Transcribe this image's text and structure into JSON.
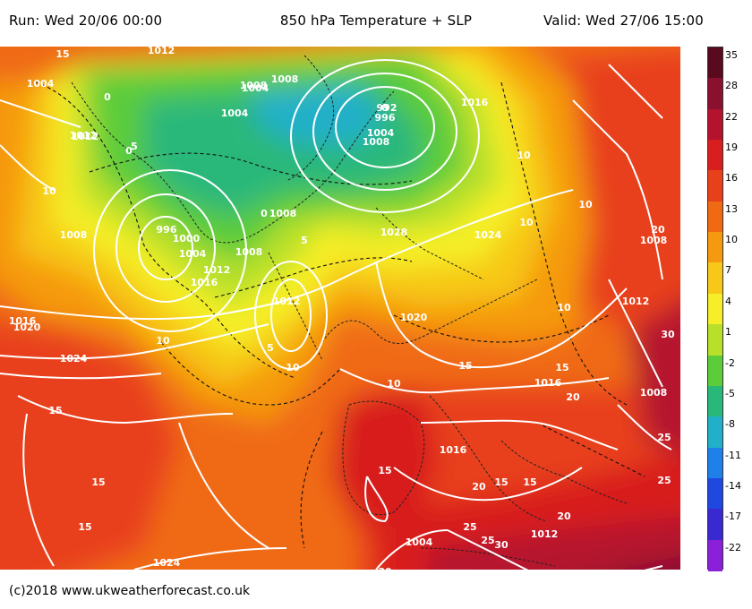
{
  "header": {
    "run": "Run: Wed 20/06 00:00",
    "title": "850 hPa Temperature + SLP",
    "valid": "Valid: Wed 27/06 15:00"
  },
  "footer": {
    "copyright": "(c)2018 www.ukweatherforecast.co.uk"
  },
  "scale": {
    "ticks": [
      "35",
      "28",
      "22",
      "19",
      "16",
      "13",
      "10",
      "7",
      "4",
      "1",
      "-2",
      "-5",
      "-8",
      "-11",
      "-14",
      "-17",
      "-22"
    ],
    "colors": [
      "#5a0a1e",
      "#8a1030",
      "#b5122e",
      "#d81e1e",
      "#e8401a",
      "#f06a14",
      "#f59a10",
      "#f7c818",
      "#f5ee28",
      "#b8e02a",
      "#5ccc3a",
      "#2ab87a",
      "#22b0c8",
      "#1e80e8",
      "#1e48e0",
      "#3a28d0",
      "#8a20d8"
    ]
  },
  "map": {
    "isobar_labels": [
      "1012",
      "1004",
      "1008",
      "1012",
      "1004",
      "1004",
      "1008",
      "992",
      "996",
      "1004",
      "1008",
      "1016",
      "1012",
      "996",
      "1000",
      "1004",
      "1008",
      "1008",
      "1012",
      "1016",
      "1008",
      "1028",
      "1024",
      "1012",
      "1016",
      "1020",
      "1024",
      "1024",
      "1020",
      "1016",
      "1012",
      "1008",
      "1004",
      "1016",
      "1012",
      "1008"
    ],
    "temperature_labels": [
      "15",
      "0",
      "0",
      "0",
      "10",
      "5",
      "5",
      "0",
      "10",
      "15",
      "10",
      "5",
      "10",
      "15",
      "15",
      "20",
      "25",
      "30",
      "15",
      "20",
      "10",
      "15",
      "15",
      "20",
      "25",
      "30",
      "15",
      "20",
      "25",
      "10",
      "10",
      "10",
      "15",
      "25",
      "30",
      "25"
    ]
  }
}
